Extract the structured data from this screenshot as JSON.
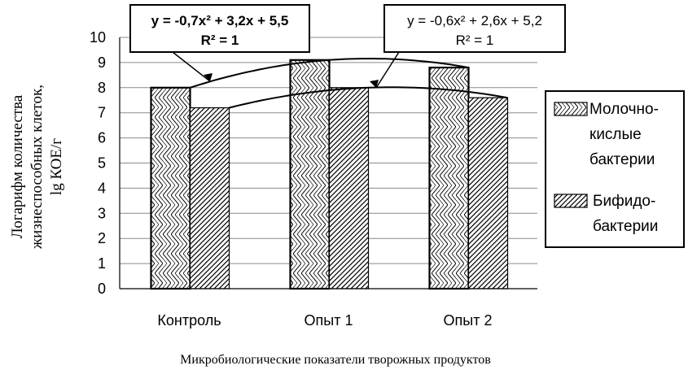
{
  "chart_data": {
    "type": "bar",
    "categories": [
      "Контроль",
      "Опыт 1",
      "Опыт 2"
    ],
    "series": [
      {
        "name": "Молочно-кислые бактерии",
        "legend_lines": [
          "Молочно-",
          "кислые",
          "бактерии"
        ],
        "values": [
          8.0,
          9.1,
          8.8
        ],
        "pattern": "zigzag"
      },
      {
        "name": "Бифидо-бактерии",
        "legend_lines": [
          "Бифидо-",
          "бактерии"
        ],
        "values": [
          7.2,
          8.0,
          7.6
        ],
        "pattern": "diagonal"
      }
    ],
    "trendlines": [
      {
        "series": 0,
        "coef": [
          -0.7,
          3.2,
          5.5
        ],
        "equation": "y = -0,7x² + 3,2x + 5,5",
        "r2": "R² = 1",
        "bold": true
      },
      {
        "series": 1,
        "coef": [
          -0.6,
          2.6,
          5.2
        ],
        "equation": "y = -0,6x² + 2,6x + 5,2",
        "r2": "R² = 1",
        "bold": false
      }
    ],
    "ylim": [
      0,
      10
    ],
    "yticks": [
      "0",
      "1",
      "2",
      "3",
      "4",
      "5",
      "6",
      "7",
      "8",
      "9",
      "10"
    ],
    "ylabel_lines": [
      "Логарифм количества",
      "жизнеспособных клеток,",
      "lg КОЕ/г"
    ],
    "xlabel": "Микробиологические показатели творожных продуктов",
    "grid": true,
    "legend_position": "right"
  }
}
